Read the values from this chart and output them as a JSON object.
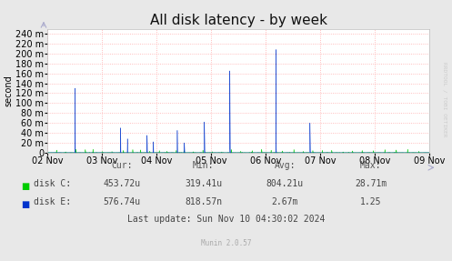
{
  "title": "All disk latency - by week",
  "ylabel": "second",
  "background_color": "#e8e8e8",
  "plot_bg_color": "#ffffff",
  "grid_color": "#ffaaaa",
  "x_tick_labels": [
    "02 Nov",
    "03 Nov",
    "04 Nov",
    "05 Nov",
    "06 Nov",
    "07 Nov",
    "08 Nov",
    "09 Nov"
  ],
  "y_ticks": [
    0,
    20,
    40,
    60,
    80,
    100,
    120,
    140,
    160,
    180,
    200,
    220,
    240
  ],
  "color_c": "#00cc00",
  "color_e": "#0033cc",
  "stats_headers": [
    "Cur:",
    "Min:",
    "Avg:",
    "Max:"
  ],
  "stats_disk_c": [
    "453.72u",
    "319.41u",
    "804.21u",
    "28.71m"
  ],
  "stats_disk_e": [
    "576.74u",
    "818.57n",
    "2.67m",
    "1.25"
  ],
  "last_update": "Last update: Sun Nov 10 04:30:02 2024",
  "munin_version": "Munin 2.0.57",
  "watermark": "RRDTOOL / TOBI OETIKER",
  "title_fontsize": 11,
  "tick_fontsize": 7,
  "ylabel_fontsize": 7,
  "stats_fontsize": 7,
  "munin_fontsize": 5.5
}
